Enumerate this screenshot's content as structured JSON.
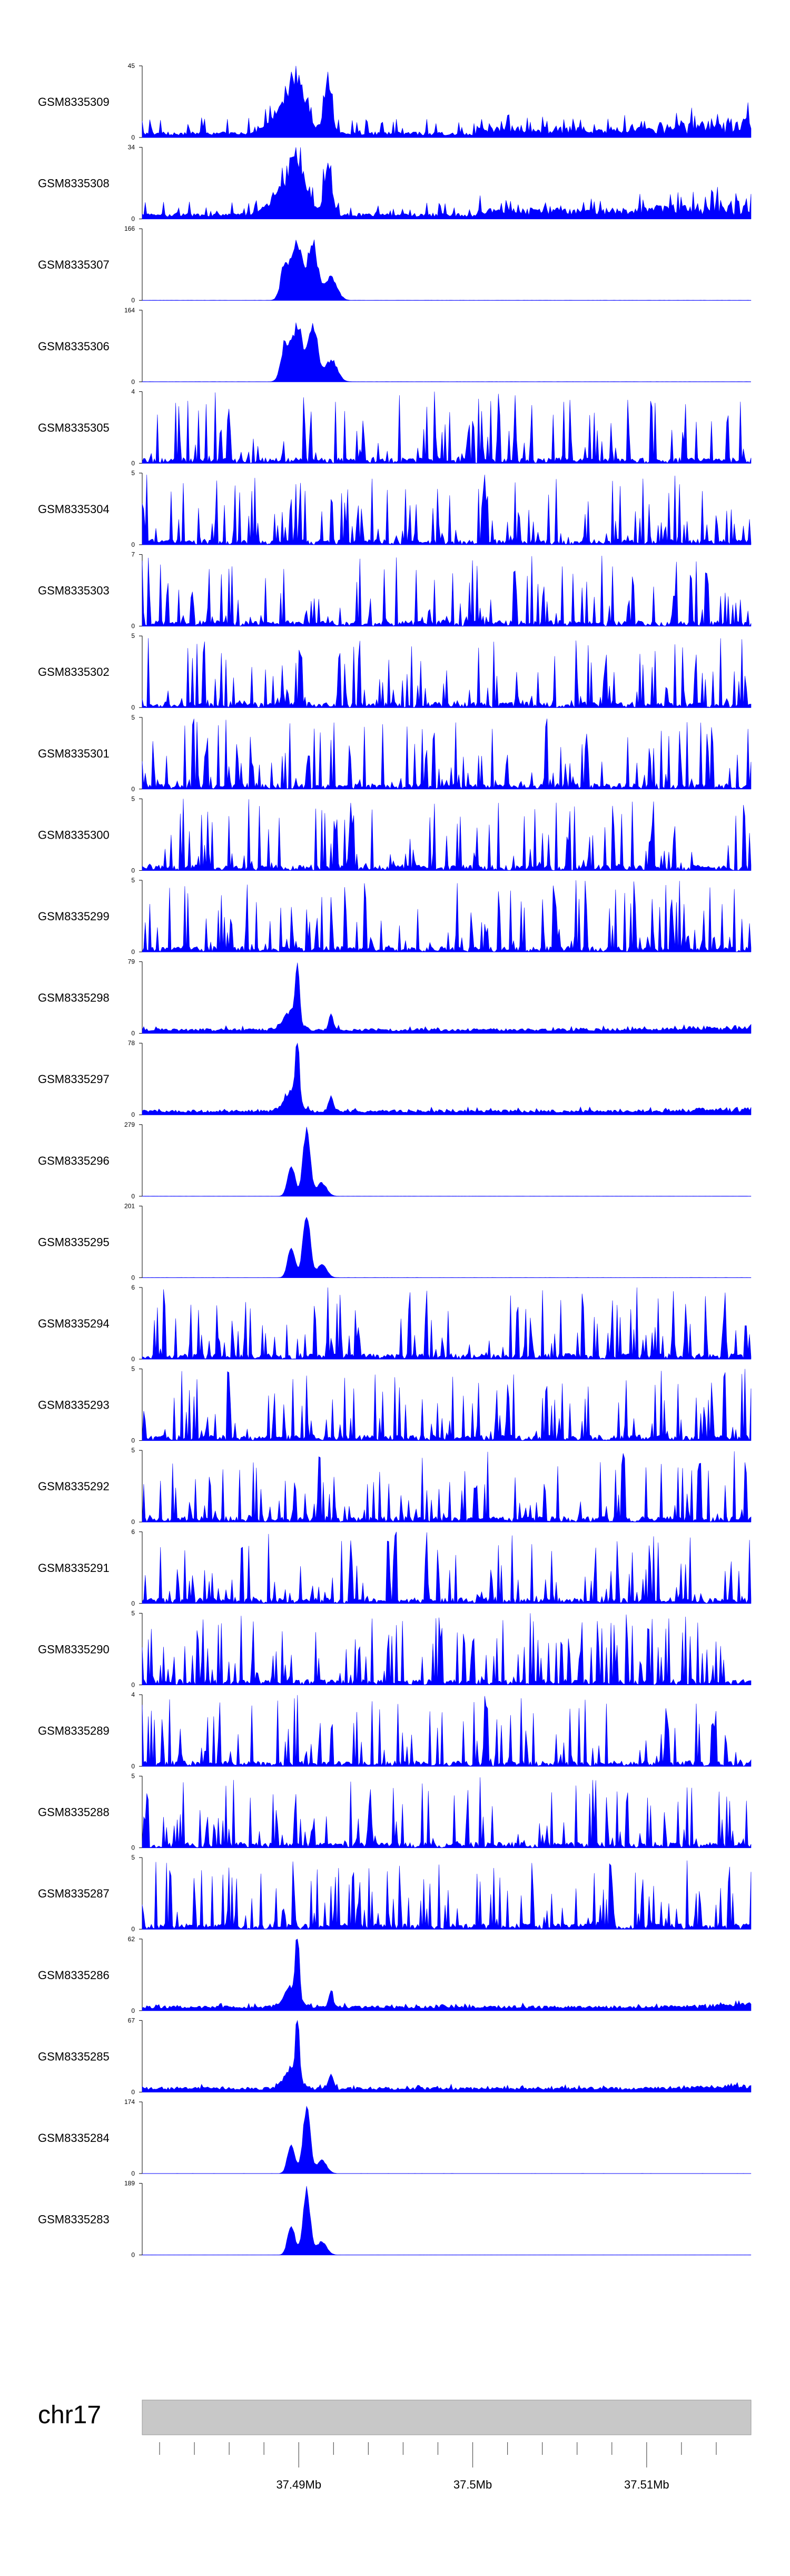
{
  "chart_data": {
    "type": "area",
    "title": "",
    "fill_color": "#0000ff",
    "tracks": [
      {
        "name": "GSM8335309",
        "ymax": 45,
        "profile": "noisy-peak"
      },
      {
        "name": "GSM8335308",
        "ymax": 34,
        "profile": "noisy-peak"
      },
      {
        "name": "GSM8335307",
        "ymax": 166,
        "profile": "broad-peak"
      },
      {
        "name": "GSM8335306",
        "ymax": 164,
        "profile": "broad-peak"
      },
      {
        "name": "GSM8335305",
        "ymax": 4,
        "profile": "noise"
      },
      {
        "name": "GSM8335304",
        "ymax": 5,
        "profile": "noise"
      },
      {
        "name": "GSM8335303",
        "ymax": 7,
        "profile": "noise"
      },
      {
        "name": "GSM8335302",
        "ymax": 5,
        "profile": "noise"
      },
      {
        "name": "GSM8335301",
        "ymax": 5,
        "profile": "noise"
      },
      {
        "name": "GSM8335300",
        "ymax": 5,
        "profile": "noise"
      },
      {
        "name": "GSM8335299",
        "ymax": 5,
        "profile": "noise"
      },
      {
        "name": "GSM8335298",
        "ymax": 79,
        "profile": "sharp-peak"
      },
      {
        "name": "GSM8335297",
        "ymax": 78,
        "profile": "sharp-peak"
      },
      {
        "name": "GSM8335296",
        "ymax": 279,
        "profile": "single-peak"
      },
      {
        "name": "GSM8335295",
        "ymax": 201,
        "profile": "single-peak"
      },
      {
        "name": "GSM8335294",
        "ymax": 6,
        "profile": "noise"
      },
      {
        "name": "GSM8335293",
        "ymax": 5,
        "profile": "noise"
      },
      {
        "name": "GSM8335292",
        "ymax": 5,
        "profile": "noise"
      },
      {
        "name": "GSM8335291",
        "ymax": 6,
        "profile": "noise"
      },
      {
        "name": "GSM8335290",
        "ymax": 5,
        "profile": "noise"
      },
      {
        "name": "GSM8335289",
        "ymax": 4,
        "profile": "noise"
      },
      {
        "name": "GSM8335288",
        "ymax": 5,
        "profile": "noise"
      },
      {
        "name": "GSM8335287",
        "ymax": 5,
        "profile": "noise"
      },
      {
        "name": "GSM8335286",
        "ymax": 62,
        "profile": "sharp-peak"
      },
      {
        "name": "GSM8335285",
        "ymax": 67,
        "profile": "sharp-peak"
      },
      {
        "name": "GSM8335284",
        "ymax": 174,
        "profile": "single-peak"
      },
      {
        "name": "GSM8335283",
        "ymax": 189,
        "profile": "single-peak"
      }
    ],
    "ymin_label": "0",
    "xaxis": {
      "chromosome": "chr17",
      "xlim_mb": [
        37.481,
        37.516
      ],
      "ticks_mb": [
        37.49,
        37.5,
        37.51
      ],
      "tick_labels": [
        "37.49Mb",
        "37.5Mb",
        "37.51Mb"
      ],
      "minor_tick_step_mb": 0.002
    }
  }
}
